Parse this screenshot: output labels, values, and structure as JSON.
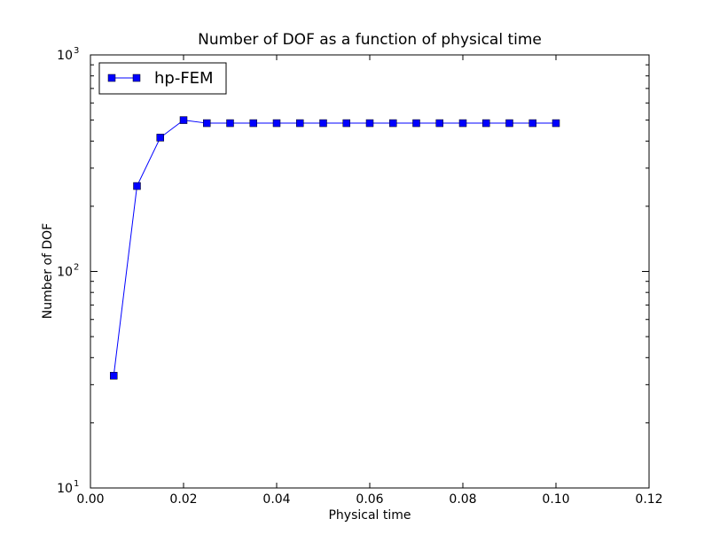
{
  "chart_data": {
    "type": "line",
    "title": "Number of DOF as a function of physical time",
    "xlabel": "Physical time",
    "ylabel": "Number of DOF",
    "x_scale": "linear",
    "y_scale": "log",
    "xlim": [
      0.0,
      0.12
    ],
    "ylim": [
      10,
      1000
    ],
    "x_ticks": [
      "0.00",
      "0.02",
      "0.04",
      "0.06",
      "0.08",
      "0.10",
      "0.12"
    ],
    "y_ticks": [
      {
        "value": 10,
        "base": "10",
        "exp": "1"
      },
      {
        "value": 100,
        "base": "10",
        "exp": "2"
      },
      {
        "value": 1000,
        "base": "10",
        "exp": "3"
      }
    ],
    "grid": false,
    "legend_position": "upper-left",
    "series": [
      {
        "name": "hp-FEM",
        "color": "#0000ff",
        "marker": "square",
        "x": [
          0.005,
          0.01,
          0.015,
          0.02,
          0.025,
          0.03,
          0.035,
          0.04,
          0.045,
          0.05,
          0.055,
          0.06,
          0.065,
          0.07,
          0.075,
          0.08,
          0.085,
          0.09,
          0.095,
          0.1
        ],
        "y": [
          33,
          248,
          415,
          500,
          484,
          484,
          484,
          484,
          484,
          484,
          484,
          484,
          484,
          484,
          484,
          484,
          484,
          484,
          484,
          484
        ]
      }
    ]
  }
}
